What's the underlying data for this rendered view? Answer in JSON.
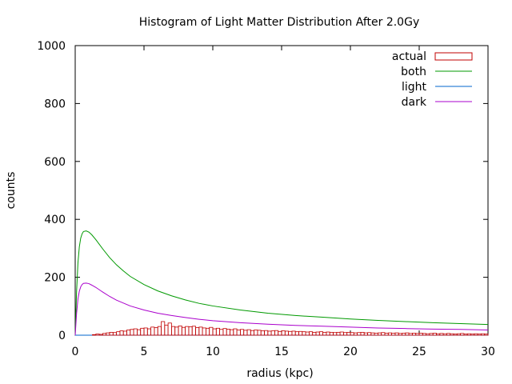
{
  "chart_data": {
    "type": "bar",
    "title": "Histogram of Light Matter Distribution After 2.0Gy",
    "xlabel": "radius (kpc)",
    "ylabel": "counts",
    "xlim": [
      0,
      30
    ],
    "ylim": [
      0,
      1000
    ],
    "xticks": [
      0,
      5,
      10,
      15,
      20,
      25,
      30
    ],
    "yticks": [
      0,
      200,
      400,
      600,
      800,
      1000
    ],
    "grid": false,
    "legend_position": "top-right",
    "colors": {
      "actual": "#c00000",
      "both": "#009900",
      "light": "#0066cc",
      "dark": "#aa00cc"
    },
    "series": [
      {
        "name": "both",
        "style": "line",
        "x": [
          0,
          0.1,
          0.2,
          0.3,
          0.4,
          0.5,
          0.6,
          0.8,
          1.0,
          1.2,
          1.5,
          2,
          2.5,
          3,
          3.5,
          4,
          5,
          6,
          7,
          8,
          9,
          10,
          12,
          14,
          16,
          18,
          20,
          22,
          24,
          26,
          28,
          30
        ],
        "y": [
          0,
          150,
          250,
          305,
          335,
          350,
          358,
          360,
          356,
          347,
          330,
          298,
          268,
          243,
          222,
          203,
          175,
          153,
          136,
          122,
          110,
          101,
          87,
          76,
          68,
          62,
          56,
          51,
          47,
          43,
          40,
          37
        ]
      },
      {
        "name": "light",
        "style": "line",
        "x": [
          0,
          30
        ],
        "y": [
          0,
          0
        ]
      },
      {
        "name": "dark",
        "style": "line",
        "x": [
          0,
          0.1,
          0.2,
          0.3,
          0.4,
          0.5,
          0.6,
          0.8,
          1.0,
          1.2,
          1.5,
          2,
          2.5,
          3,
          3.5,
          4,
          5,
          6,
          7,
          8,
          9,
          10,
          12,
          14,
          16,
          18,
          20,
          22,
          24,
          26,
          28,
          30
        ],
        "y": [
          0,
          75,
          125,
          152,
          167,
          175,
          179,
          180,
          178,
          173,
          165,
          149,
          134,
          121,
          111,
          101,
          87,
          76,
          68,
          61,
          55,
          50,
          43,
          38,
          34,
          31,
          28,
          25,
          23,
          21,
          20,
          18
        ]
      },
      {
        "name": "actual",
        "style": "histogram",
        "bin_width": 0.25,
        "x": [
          0.125,
          0.375,
          0.625,
          0.875,
          1.125,
          1.375,
          1.625,
          1.875,
          2.125,
          2.375,
          2.625,
          2.875,
          3.125,
          3.375,
          3.625,
          3.875,
          4.125,
          4.375,
          4.625,
          4.875,
          5.125,
          5.375,
          5.625,
          5.875,
          6.125,
          6.375,
          6.625,
          6.875,
          7.125,
          7.375,
          7.625,
          7.875,
          8.125,
          8.375,
          8.625,
          8.875,
          9.125,
          9.375,
          9.625,
          9.875,
          10.125,
          10.375,
          10.625,
          10.875,
          11.125,
          11.375,
          11.625,
          11.875,
          12.125,
          12.375,
          12.625,
          12.875,
          13.125,
          13.375,
          13.625,
          13.875,
          14.125,
          14.375,
          14.625,
          14.875,
          15.125,
          15.375,
          15.625,
          15.875,
          16.125,
          16.375,
          16.625,
          16.875,
          17.125,
          17.375,
          17.625,
          17.875,
          18.125,
          18.375,
          18.625,
          18.875,
          19.125,
          19.375,
          19.625,
          19.875,
          20.125,
          20.375,
          20.625,
          20.875,
          21.125,
          21.375,
          21.625,
          21.875,
          22.125,
          22.375,
          22.625,
          22.875,
          23.125,
          23.375,
          23.625,
          23.875,
          24.125,
          24.375,
          24.625,
          24.875,
          25.125,
          25.375,
          25.625,
          25.875,
          26.125,
          26.375,
          26.625,
          26.875,
          27.125,
          27.375,
          27.625,
          27.875,
          28.125,
          28.375,
          28.625,
          28.875,
          29.125,
          29.375,
          29.625,
          29.875
        ],
        "values": [
          0,
          0,
          0,
          0,
          0,
          2,
          4,
          3,
          6,
          8,
          10,
          9,
          12,
          15,
          14,
          18,
          20,
          22,
          19,
          24,
          25,
          22,
          28,
          26,
          30,
          47,
          35,
          42,
          30,
          28,
          32,
          27,
          30,
          29,
          31,
          26,
          28,
          25,
          24,
          27,
          22,
          24,
          20,
          23,
          21,
          19,
          22,
          18,
          20,
          17,
          19,
          16,
          18,
          17,
          15,
          16,
          14,
          15,
          16,
          13,
          15,
          14,
          13,
          14,
          12,
          13,
          12,
          11,
          12,
          10,
          11,
          12,
          10,
          11,
          10,
          9,
          10,
          11,
          9,
          10,
          9,
          8,
          9,
          10,
          8,
          9,
          8,
          7,
          8,
          9,
          7,
          8,
          7,
          8,
          6,
          7,
          8,
          6,
          7,
          6,
          7,
          6,
          5,
          6,
          7,
          5,
          6,
          5,
          6,
          5,
          4,
          5,
          6,
          4,
          5,
          4,
          5,
          4,
          5,
          4
        ]
      }
    ]
  }
}
